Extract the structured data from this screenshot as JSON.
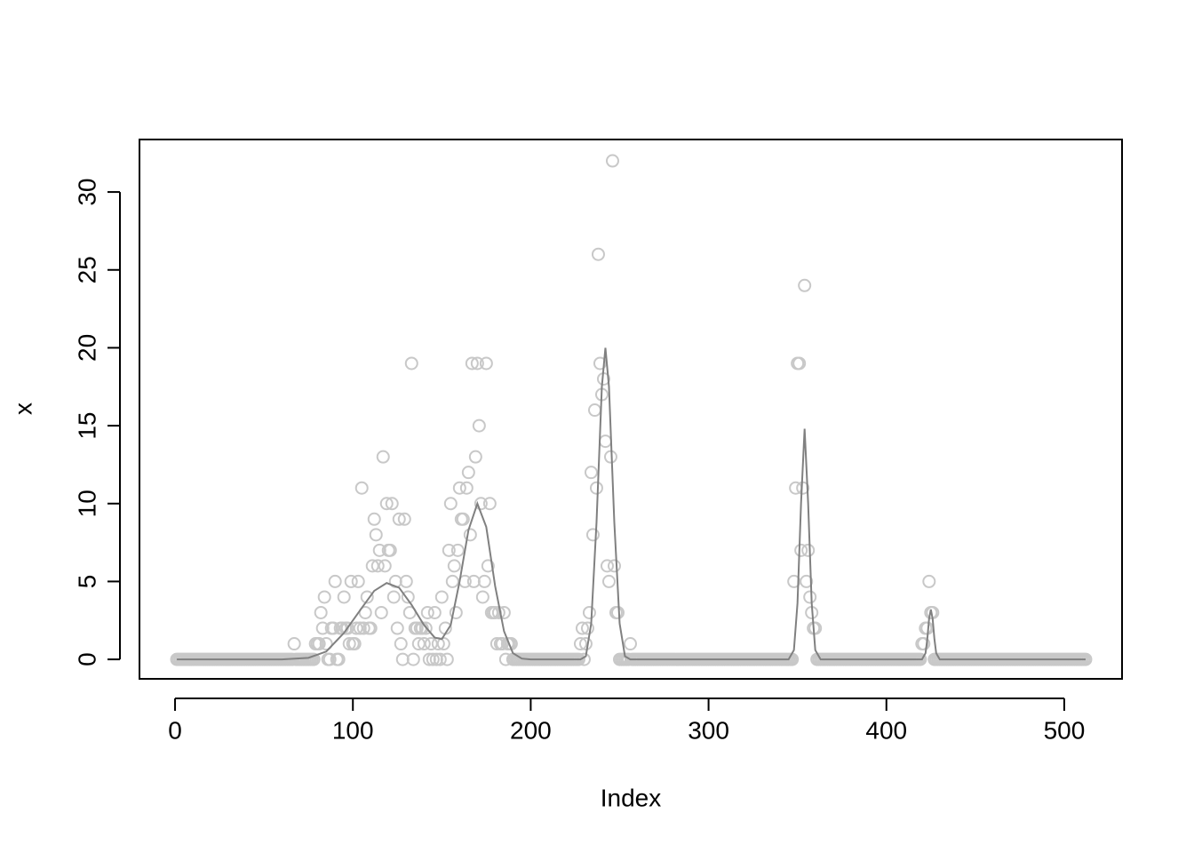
{
  "chart_data": {
    "type": "scatter",
    "xlabel": "Index",
    "ylabel": "x",
    "xlim": [
      -20,
      532.5
    ],
    "ylim": [
      -1.25,
      33.37
    ],
    "xticks": [
      0,
      100,
      200,
      300,
      400,
      500
    ],
    "yticks": [
      0,
      5,
      10,
      15,
      20,
      25,
      30
    ],
    "color": "#c8c8c8",
    "line_color": "#808080",
    "x": [
      1,
      2,
      3,
      4,
      5,
      6,
      7,
      8,
      9,
      10,
      11,
      12,
      13,
      14,
      15,
      16,
      17,
      18,
      19,
      20,
      21,
      22,
      23,
      24,
      25,
      26,
      27,
      28,
      29,
      30,
      31,
      32,
      33,
      34,
      35,
      36,
      37,
      38,
      39,
      40,
      41,
      42,
      43,
      44,
      45,
      46,
      47,
      48,
      49,
      50,
      51,
      52,
      53,
      54,
      55,
      56,
      57,
      58,
      59,
      60,
      61,
      62,
      63,
      64,
      65,
      66,
      67,
      68,
      69,
      70,
      71,
      72,
      73,
      74,
      75,
      76,
      77,
      78,
      79,
      80,
      81,
      82,
      83,
      84,
      85,
      86,
      87,
      88,
      89,
      90,
      91,
      92,
      93,
      94,
      95,
      96,
      97,
      98,
      99,
      100,
      101,
      102,
      103,
      104,
      105,
      106,
      107,
      108,
      109,
      110,
      111,
      112,
      113,
      114,
      115,
      116,
      117,
      118,
      119,
      120,
      121,
      122,
      123,
      124,
      125,
      126,
      127,
      128,
      129,
      130,
      131,
      132,
      133,
      134,
      135,
      136,
      137,
      138,
      139,
      140,
      141,
      142,
      143,
      144,
      145,
      146,
      147,
      148,
      149,
      150,
      151,
      152,
      153,
      154,
      155,
      156,
      157,
      158,
      159,
      160,
      161,
      162,
      163,
      164,
      165,
      166,
      167,
      168,
      169,
      170,
      171,
      172,
      173,
      174,
      175,
      176,
      177,
      178,
      179,
      180,
      181,
      182,
      183,
      184,
      185,
      186,
      187,
      188,
      189,
      190,
      191,
      192,
      193,
      194,
      195,
      196,
      197,
      198,
      199,
      200,
      201,
      202,
      203,
      204,
      205,
      206,
      207,
      208,
      209,
      210,
      211,
      212,
      213,
      214,
      215,
      216,
      217,
      218,
      219,
      220,
      221,
      222,
      223,
      224,
      225,
      226,
      227,
      228,
      229,
      230,
      231,
      232,
      233,
      234,
      235,
      236,
      237,
      238,
      239,
      240,
      241,
      242,
      243,
      244,
      245,
      246,
      247,
      248,
      249,
      250,
      251,
      252,
      253,
      254,
      255,
      256,
      257,
      258,
      259,
      260,
      261,
      262,
      263,
      264,
      265,
      266,
      267,
      268,
      269,
      270,
      271,
      272,
      273,
      274,
      275,
      276,
      277,
      278,
      279,
      280,
      281,
      282,
      283,
      284,
      285,
      286,
      287,
      288,
      289,
      290,
      291,
      292,
      293,
      294,
      295,
      296,
      297,
      298,
      299,
      300,
      301,
      302,
      303,
      304,
      305,
      306,
      307,
      308,
      309,
      310,
      311,
      312,
      313,
      314,
      315,
      316,
      317,
      318,
      319,
      320,
      321,
      322,
      323,
      324,
      325,
      326,
      327,
      328,
      329,
      330,
      331,
      332,
      333,
      334,
      335,
      336,
      337,
      338,
      339,
      340,
      341,
      342,
      343,
      344,
      345,
      346,
      347,
      348,
      349,
      350,
      351,
      352,
      353,
      354,
      355,
      356,
      357,
      358,
      359,
      360,
      361,
      362,
      363,
      364,
      365,
      366,
      367,
      368,
      369,
      370,
      371,
      372,
      373,
      374,
      375,
      376,
      377,
      378,
      379,
      380,
      381,
      382,
      383,
      384,
      385,
      386,
      387,
      388,
      389,
      390,
      391,
      392,
      393,
      394,
      395,
      396,
      397,
      398,
      399,
      400,
      401,
      402,
      403,
      404,
      405,
      406,
      407,
      408,
      409,
      410,
      411,
      412,
      413,
      414,
      415,
      416,
      417,
      418,
      419,
      420,
      421,
      422,
      423,
      424,
      425,
      426,
      427,
      428,
      429,
      430,
      431,
      432,
      433,
      434,
      435,
      436,
      437,
      438,
      439,
      440,
      441,
      442,
      443,
      444,
      445,
      446,
      447,
      448,
      449,
      450,
      451,
      452,
      453,
      454,
      455,
      456,
      457,
      458,
      459,
      460,
      461,
      462,
      463,
      464,
      465,
      466,
      467,
      468,
      469,
      470,
      471,
      472,
      473,
      474,
      475,
      476,
      477,
      478,
      479,
      480,
      481,
      482,
      483,
      484,
      485,
      486,
      487,
      488,
      489,
      490,
      491,
      492,
      493,
      494,
      495,
      496,
      497,
      498,
      499,
      500,
      501,
      502,
      503,
      504,
      505,
      506,
      507,
      508,
      509,
      510,
      511,
      512
    ],
    "values": [
      0,
      0,
      0,
      0,
      0,
      0,
      0,
      0,
      0,
      0,
      0,
      0,
      0,
      0,
      0,
      0,
      0,
      0,
      0,
      0,
      0,
      0,
      0,
      0,
      0,
      0,
      0,
      0,
      0,
      0,
      0,
      0,
      0,
      0,
      0,
      0,
      0,
      0,
      0,
      0,
      0,
      0,
      0,
      0,
      0,
      0,
      0,
      0,
      0,
      0,
      0,
      0,
      0,
      0,
      0,
      0,
      0,
      0,
      0,
      0,
      0,
      0,
      0,
      0,
      0,
      0,
      1,
      0,
      0,
      0,
      0,
      0,
      0,
      0,
      0,
      0,
      0,
      0,
      1,
      1,
      1,
      3,
      2,
      4,
      1,
      0,
      0,
      2,
      2,
      5,
      0,
      0,
      2,
      2,
      4,
      2,
      2,
      1,
      5,
      1,
      1,
      2,
      5,
      2,
      11,
      2,
      3,
      4,
      2,
      2,
      6,
      9,
      8,
      6,
      7,
      3,
      13,
      6,
      10,
      7,
      7,
      10,
      4,
      5,
      2,
      9,
      1,
      0,
      9,
      5,
      4,
      3,
      19,
      0,
      2,
      2,
      1,
      2,
      2,
      1,
      2,
      3,
      0,
      1,
      0,
      3,
      0,
      1,
      0,
      4,
      1,
      2,
      0,
      7,
      10,
      5,
      6,
      3,
      7,
      11,
      9,
      9,
      5,
      11,
      12,
      8,
      19,
      5,
      13,
      19,
      15,
      10,
      4,
      5,
      19,
      6,
      10,
      3,
      3,
      3,
      1,
      3,
      1,
      1,
      3,
      0,
      1,
      1,
      1,
      0,
      0,
      0,
      0,
      0,
      0,
      0,
      0,
      0,
      0,
      0,
      0,
      0,
      0,
      0,
      0,
      0,
      0,
      0,
      0,
      0,
      0,
      0,
      0,
      0,
      0,
      0,
      0,
      0,
      0,
      0,
      0,
      0,
      0,
      0,
      0,
      0,
      0,
      1,
      2,
      0,
      1,
      2,
      3,
      12,
      8,
      16,
      11,
      26,
      19,
      17,
      18,
      14,
      6,
      5,
      13,
      32,
      6,
      3,
      3,
      0,
      0,
      0,
      0,
      0,
      0,
      1,
      0,
      0,
      0,
      0,
      0,
      0,
      0,
      0,
      0,
      0,
      0,
      0,
      0,
      0,
      0,
      0,
      0,
      0,
      0,
      0,
      0,
      0,
      0,
      0,
      0,
      0,
      0,
      0,
      0,
      0,
      0,
      0,
      0,
      0,
      0,
      0,
      0,
      0,
      0,
      0,
      0,
      0,
      0,
      0,
      0,
      0,
      0,
      0,
      0,
      0,
      0,
      0,
      0,
      0,
      0,
      0,
      0,
      0,
      0,
      0,
      0,
      0,
      0,
      0,
      0,
      0,
      0,
      0,
      0,
      0,
      0,
      0,
      0,
      0,
      0,
      0,
      0,
      0,
      0,
      0,
      0,
      0,
      0,
      0,
      0,
      0,
      0,
      0,
      0,
      0,
      0,
      5,
      11,
      19,
      19,
      7,
      11,
      24,
      5,
      7,
      4,
      3,
      2,
      2,
      0,
      0,
      0,
      0,
      0,
      0,
      0,
      0,
      0,
      0,
      0,
      0,
      0,
      0,
      0,
      0,
      0,
      0,
      0,
      0,
      0,
      0,
      0,
      0,
      0,
      0,
      0,
      0,
      0,
      0,
      0,
      0,
      0,
      0,
      0,
      0,
      0,
      0,
      0,
      0,
      0,
      0,
      0,
      0,
      0,
      0,
      0,
      0,
      0,
      0,
      0,
      0,
      0,
      0,
      0,
      0,
      0,
      0,
      0,
      1,
      1,
      2,
      2,
      5,
      3,
      3,
      0,
      0,
      0,
      0,
      0,
      0,
      0,
      0,
      0,
      0,
      0,
      0,
      0,
      0,
      0,
      0,
      0,
      0,
      0,
      0,
      0,
      0,
      0,
      0,
      0,
      0,
      0,
      0,
      0,
      0,
      0,
      0,
      0,
      0,
      0,
      0,
      0,
      0,
      0,
      0,
      0,
      0,
      0,
      0,
      0,
      0,
      0,
      0,
      0,
      0,
      0,
      0,
      0,
      0,
      0,
      0,
      0,
      0,
      0,
      0,
      0,
      0,
      0,
      0,
      0,
      0,
      0,
      0,
      0,
      0,
      0,
      0,
      0,
      0,
      0,
      0,
      0,
      0,
      0,
      0,
      0,
      0,
      0,
      0,
      0,
      0
    ],
    "line": {
      "x": [
        1,
        60,
        75,
        85,
        95,
        105,
        112,
        119,
        126,
        133,
        140,
        146,
        150,
        155,
        160,
        165,
        170,
        175,
        180,
        185,
        190,
        195,
        200,
        228,
        231,
        234,
        237,
        240,
        242,
        244,
        247,
        250,
        253,
        256,
        345,
        348,
        350,
        352,
        354,
        356,
        358,
        360,
        363,
        420,
        422,
        423,
        424,
        425,
        426,
        427,
        428,
        430,
        512
      ],
      "values": [
        0,
        0,
        0.1,
        0.5,
        1.7,
        3.3,
        4.4,
        4.9,
        4.6,
        3.5,
        2.2,
        1.4,
        1.3,
        2.2,
        5.0,
        8.3,
        10.0,
        8.5,
        4.7,
        1.8,
        0.4,
        0.05,
        0,
        0,
        0.2,
        2.3,
        8.8,
        17.5,
        20,
        17.5,
        8.8,
        2.3,
        0.2,
        0,
        0,
        0.6,
        3.6,
        10,
        14.8,
        10,
        3.6,
        0.6,
        0,
        0,
        0.4,
        1.3,
        2.6,
        3.2,
        2.6,
        1.3,
        0.4,
        0,
        0
      ]
    }
  }
}
